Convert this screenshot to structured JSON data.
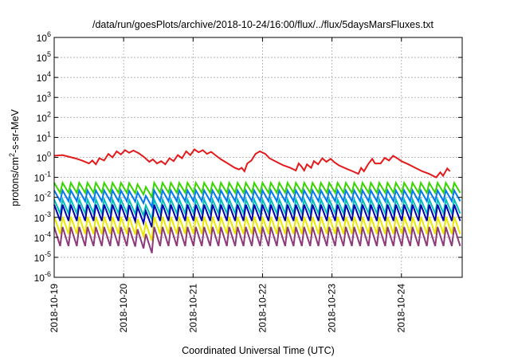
{
  "chart_data": {
    "type": "line",
    "title": "/data/run/goesPlots/archive/2018-10-24/16:00/flux/../flux/5daysMarsFluxes.txt",
    "xlabel": "Coordinated Universal Time (UTC)",
    "ylabel": {
      "base": "protons/cm",
      "sup": "2",
      "rest": "-s-sr-MeV"
    },
    "yscale": "log",
    "ylim": [
      1e-06,
      1000000.0
    ],
    "xlim": [
      "2018-10-19 00:00",
      "2018-10-24 21:00"
    ],
    "x_ticks": [
      {
        "label": "2018-10-19",
        "day": 0
      },
      {
        "label": "2018-10-20",
        "day": 1
      },
      {
        "label": "2018-10-21",
        "day": 2
      },
      {
        "label": "2018-10-22",
        "day": 3
      },
      {
        "label": "2018-10-23",
        "day": 4
      },
      {
        "label": "2018-10-24",
        "day": 5
      }
    ],
    "y_ticks": [
      {
        "base": "10",
        "exp": "6",
        "value": 1000000.0
      },
      {
        "base": "10",
        "exp": "5",
        "value": 100000.0
      },
      {
        "base": "10",
        "exp": "4",
        "value": 10000.0
      },
      {
        "base": "10",
        "exp": "3",
        "value": 1000.0
      },
      {
        "base": "10",
        "exp": "2",
        "value": 100.0
      },
      {
        "base": "10",
        "exp": "1",
        "value": 10.0
      },
      {
        "base": "10",
        "exp": "0",
        "value": 1
      },
      {
        "base": "10",
        "exp": "-1",
        "value": 0.1
      },
      {
        "base": "10",
        "exp": "-2",
        "value": 0.01
      },
      {
        "base": "10",
        "exp": "-3",
        "value": 0.001
      },
      {
        "base": "10",
        "exp": "-4",
        "value": 0.0001
      },
      {
        "base": "10",
        "exp": "-5",
        "value": 1e-05
      },
      {
        "base": "10",
        "exp": "-6",
        "value": 1e-06
      }
    ],
    "grid": true,
    "legend": "none",
    "series": [
      {
        "color": "#e41a1c",
        "points": [
          [
            0.0,
            1.2
          ],
          [
            0.12,
            1.3
          ],
          [
            0.3,
            0.9
          ],
          [
            0.4,
            0.7
          ],
          [
            0.5,
            0.5
          ],
          [
            0.55,
            0.7
          ],
          [
            0.6,
            0.45
          ],
          [
            0.65,
            0.9
          ],
          [
            0.72,
            0.7
          ],
          [
            0.78,
            1.5
          ],
          [
            0.84,
            1.0
          ],
          [
            0.9,
            2.0
          ],
          [
            0.96,
            1.4
          ],
          [
            1.02,
            2.3
          ],
          [
            1.08,
            1.7
          ],
          [
            1.14,
            2.2
          ],
          [
            1.22,
            1.6
          ],
          [
            1.3,
            1.0
          ],
          [
            1.37,
            0.6
          ],
          [
            1.42,
            0.8
          ],
          [
            1.48,
            0.5
          ],
          [
            1.54,
            0.65
          ],
          [
            1.6,
            0.45
          ],
          [
            1.66,
            0.9
          ],
          [
            1.72,
            0.65
          ],
          [
            1.78,
            1.3
          ],
          [
            1.84,
            0.9
          ],
          [
            1.9,
            2.0
          ],
          [
            1.96,
            1.3
          ],
          [
            2.02,
            2.5
          ],
          [
            2.08,
            1.8
          ],
          [
            2.14,
            2.3
          ],
          [
            2.2,
            1.5
          ],
          [
            2.26,
            1.9
          ],
          [
            2.32,
            1.3
          ],
          [
            2.4,
            0.8
          ],
          [
            2.5,
            0.5
          ],
          [
            2.6,
            0.3
          ],
          [
            2.66,
            0.25
          ],
          [
            2.7,
            0.3
          ],
          [
            2.74,
            0.2
          ],
          [
            2.78,
            0.5
          ],
          [
            2.84,
            0.7
          ],
          [
            2.9,
            1.5
          ],
          [
            2.96,
            2.0
          ],
          [
            3.04,
            1.5
          ],
          [
            3.1,
            0.9
          ],
          [
            3.2,
            0.6
          ],
          [
            3.3,
            0.4
          ],
          [
            3.4,
            0.3
          ],
          [
            3.48,
            0.22
          ],
          [
            3.52,
            0.5
          ],
          [
            3.56,
            0.35
          ],
          [
            3.6,
            0.22
          ],
          [
            3.64,
            0.45
          ],
          [
            3.7,
            0.3
          ],
          [
            3.74,
            0.65
          ],
          [
            3.8,
            0.45
          ],
          [
            3.86,
            0.9
          ],
          [
            3.92,
            0.6
          ],
          [
            3.98,
            0.85
          ],
          [
            4.04,
            0.55
          ],
          [
            4.1,
            0.4
          ],
          [
            4.2,
            0.28
          ],
          [
            4.3,
            0.2
          ],
          [
            4.38,
            0.15
          ],
          [
            4.42,
            0.3
          ],
          [
            4.46,
            0.2
          ],
          [
            4.52,
            0.45
          ],
          [
            4.58,
            0.85
          ],
          [
            4.62,
            0.5
          ],
          [
            4.7,
            0.5
          ],
          [
            4.76,
            0.95
          ],
          [
            4.82,
            0.7
          ],
          [
            4.88,
            1.2
          ],
          [
            4.94,
            0.9
          ],
          [
            5.0,
            0.65
          ],
          [
            5.1,
            0.45
          ],
          [
            5.2,
            0.3
          ],
          [
            5.3,
            0.2
          ],
          [
            5.4,
            0.15
          ],
          [
            5.5,
            0.1
          ],
          [
            5.56,
            0.18
          ],
          [
            5.6,
            0.12
          ],
          [
            5.66,
            0.28
          ],
          [
            5.7,
            0.2
          ]
        ]
      },
      {
        "color": "#39d500",
        "level": 0.03,
        "amp": 3.2,
        "dipFactor": 0.35
      },
      {
        "color": "#0078f0",
        "level": 0.012,
        "amp": 3.5,
        "dipFactor": 0.2
      },
      {
        "color": "#00bfb8",
        "level": 0.0035,
        "amp": 5.0,
        "dipFactor": 0.18
      },
      {
        "color": "#0000b0",
        "level": 0.0017,
        "amp": 6.5,
        "dipFactor": 0.12
      },
      {
        "color": "#e8e800",
        "level": 0.0004,
        "amp": 7.5,
        "dipFactor": 0.08
      },
      {
        "color": "#8c3a7a",
        "level": 0.00011,
        "amp": 9.0,
        "dipFactor": 0.06
      }
    ]
  }
}
